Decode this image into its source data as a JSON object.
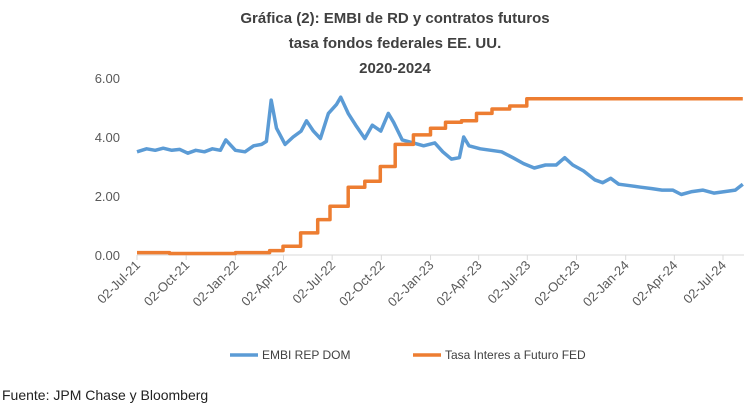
{
  "chart_data": {
    "type": "line",
    "title": [
      "Gráfica (2): EMBI de RD y contratos futuros",
      "tasa fondos federales EE. UU.",
      "2020-2024"
    ],
    "xlabel": "",
    "ylabel": "",
    "ylim": [
      0,
      6
    ],
    "yticks": [
      "0.00",
      "2.00",
      "4.00",
      "6.00"
    ],
    "xticks": [
      "02-Jul-21",
      "02-Oct-21",
      "02-Jan-22",
      "02-Apr-22",
      "02-Jul-22",
      "02-Oct-22",
      "02-Jan-23",
      "02-Apr-23",
      "02-Jul-23",
      "02-Oct-23",
      "02-Jan-24",
      "02-Apr-24",
      "02-Jul-24"
    ],
    "grid": false,
    "legend_placement": "bottom",
    "series": [
      {
        "name": "EMBI REP DOM",
        "color": "#5B9BD5",
        "step": false,
        "points": [
          [
            "2021-07-02",
            3.5
          ],
          [
            "2021-07-20",
            3.6
          ],
          [
            "2021-08-05",
            3.55
          ],
          [
            "2021-08-20",
            3.62
          ],
          [
            "2021-09-05",
            3.55
          ],
          [
            "2021-09-20",
            3.58
          ],
          [
            "2021-10-05",
            3.45
          ],
          [
            "2021-10-20",
            3.55
          ],
          [
            "2021-11-05",
            3.5
          ],
          [
            "2021-11-20",
            3.6
          ],
          [
            "2021-12-05",
            3.55
          ],
          [
            "2021-12-15",
            3.9
          ],
          [
            "2022-01-02",
            3.55
          ],
          [
            "2022-01-20",
            3.5
          ],
          [
            "2022-02-05",
            3.7
          ],
          [
            "2022-02-20",
            3.75
          ],
          [
            "2022-03-01",
            3.85
          ],
          [
            "2022-03-10",
            5.25
          ],
          [
            "2022-03-20",
            4.3
          ],
          [
            "2022-04-05",
            3.75
          ],
          [
            "2022-04-20",
            4.0
          ],
          [
            "2022-05-05",
            4.2
          ],
          [
            "2022-05-15",
            4.55
          ],
          [
            "2022-05-28",
            4.2
          ],
          [
            "2022-06-10",
            3.95
          ],
          [
            "2022-06-25",
            4.8
          ],
          [
            "2022-07-10",
            5.1
          ],
          [
            "2022-07-18",
            5.35
          ],
          [
            "2022-08-01",
            4.8
          ],
          [
            "2022-08-15",
            4.4
          ],
          [
            "2022-09-01",
            3.95
          ],
          [
            "2022-09-15",
            4.4
          ],
          [
            "2022-10-01",
            4.2
          ],
          [
            "2022-10-15",
            4.8
          ],
          [
            "2022-10-25",
            4.5
          ],
          [
            "2022-11-10",
            3.9
          ],
          [
            "2022-12-01",
            3.8
          ],
          [
            "2022-12-20",
            3.7
          ],
          [
            "2023-01-10",
            3.8
          ],
          [
            "2023-01-25",
            3.5
          ],
          [
            "2023-02-10",
            3.25
          ],
          [
            "2023-02-25",
            3.3
          ],
          [
            "2023-03-05",
            4.0
          ],
          [
            "2023-03-15",
            3.7
          ],
          [
            "2023-04-05",
            3.6
          ],
          [
            "2023-04-25",
            3.55
          ],
          [
            "2023-05-15",
            3.5
          ],
          [
            "2023-06-05",
            3.3
          ],
          [
            "2023-06-25",
            3.1
          ],
          [
            "2023-07-15",
            2.95
          ],
          [
            "2023-08-05",
            3.05
          ],
          [
            "2023-08-25",
            3.05
          ],
          [
            "2023-09-10",
            3.3
          ],
          [
            "2023-09-25",
            3.05
          ],
          [
            "2023-10-15",
            2.85
          ],
          [
            "2023-11-05",
            2.55
          ],
          [
            "2023-11-20",
            2.45
          ],
          [
            "2023-12-05",
            2.6
          ],
          [
            "2023-12-20",
            2.4
          ],
          [
            "2024-01-10",
            2.35
          ],
          [
            "2024-01-30",
            2.3
          ],
          [
            "2024-02-20",
            2.25
          ],
          [
            "2024-03-10",
            2.2
          ],
          [
            "2024-03-30",
            2.2
          ],
          [
            "2024-04-15",
            2.05
          ],
          [
            "2024-05-05",
            2.15
          ],
          [
            "2024-05-25",
            2.2
          ],
          [
            "2024-06-15",
            2.1
          ],
          [
            "2024-07-05",
            2.15
          ],
          [
            "2024-07-25",
            2.2
          ],
          [
            "2024-08-08",
            2.4
          ]
        ]
      },
      {
        "name": "Tasa Interes a Futuro FED",
        "color": "#ED7D31",
        "step": true,
        "points": [
          [
            "2021-07-02",
            0.08
          ],
          [
            "2021-09-01",
            0.05
          ],
          [
            "2022-01-02",
            0.08
          ],
          [
            "2022-03-07",
            0.15
          ],
          [
            "2022-04-01",
            0.3
          ],
          [
            "2022-05-04",
            0.75
          ],
          [
            "2022-06-05",
            1.2
          ],
          [
            "2022-06-28",
            1.65
          ],
          [
            "2022-08-01",
            2.3
          ],
          [
            "2022-09-01",
            2.5
          ],
          [
            "2022-09-30",
            3.0
          ],
          [
            "2022-10-28",
            3.75
          ],
          [
            "2022-12-01",
            4.07
          ],
          [
            "2023-01-02",
            4.3
          ],
          [
            "2023-01-30",
            4.5
          ],
          [
            "2023-03-01",
            4.55
          ],
          [
            "2023-03-29",
            4.8
          ],
          [
            "2023-04-27",
            4.95
          ],
          [
            "2023-05-30",
            5.05
          ],
          [
            "2023-07-01",
            5.3
          ],
          [
            "2024-08-08",
            5.3
          ]
        ]
      }
    ]
  },
  "source": "Fuente: JPM Chase y Bloomberg"
}
